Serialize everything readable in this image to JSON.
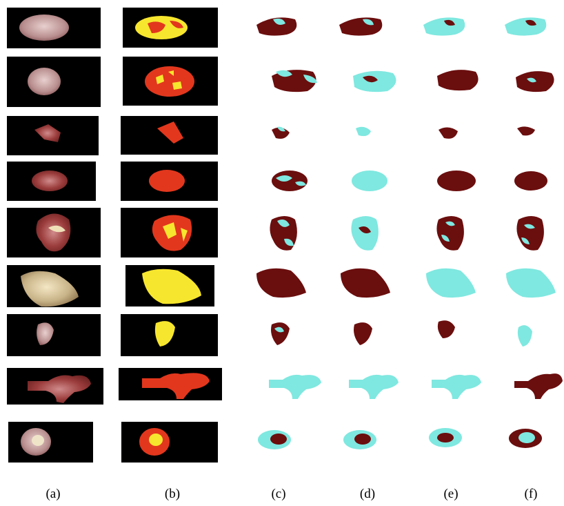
{
  "figure": {
    "captions": [
      "(a)",
      "(b)",
      "(c)",
      "(d)",
      "(e)",
      "(f)"
    ],
    "rows": 9,
    "colors": {
      "background": "#000000",
      "flesh": "#c7a8a6",
      "red_region": "#e2371d",
      "yellow_region": "#f7e62e",
      "cyan_class": "#7fe8e0",
      "maroon_class": "#6b0e0e"
    }
  }
}
